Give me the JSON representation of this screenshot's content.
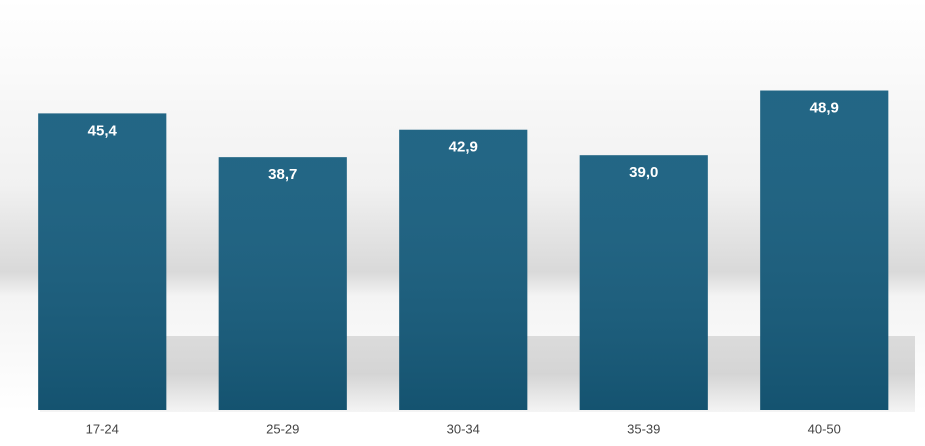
{
  "chart_data": {
    "type": "bar",
    "categories": [
      "17-24",
      "25-29",
      "30-34",
      "35-39",
      "40-50"
    ],
    "values": [
      45.4,
      38.7,
      42.9,
      39.0,
      48.9
    ],
    "value_labels": [
      "45,4",
      "38,7",
      "42,9",
      "39,0",
      "48,9"
    ],
    "color": "#175e7f",
    "ylim": [
      0,
      60
    ]
  }
}
